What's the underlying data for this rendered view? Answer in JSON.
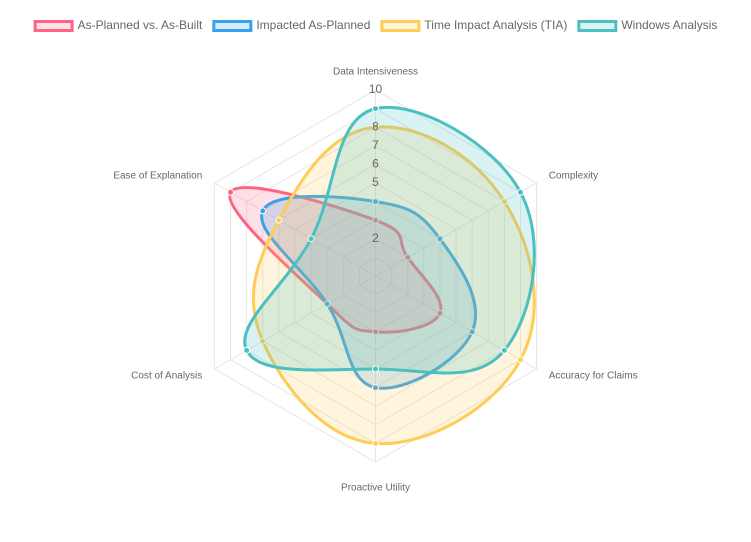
{
  "chart_data": {
    "type": "radar",
    "title": "",
    "axes": [
      "Data Intensiveness",
      "Complexity",
      "Accuracy for Claims",
      "Proactive Utility",
      "Cost of Analysis",
      "Ease of Explanation"
    ],
    "r_range": [
      0,
      10
    ],
    "ticks": [
      "10",
      "9",
      "8",
      "7",
      "6",
      "5",
      "4",
      "3",
      "2",
      "1"
    ],
    "visible_ticks": [
      "10",
      "8",
      "7",
      "6",
      "5",
      "2"
    ],
    "legend_position": "top",
    "series": [
      {
        "name": "As-Planned vs. As-Built",
        "values": [
          3,
          2,
          4,
          3,
          3,
          9
        ],
        "color": "#ff6384",
        "fill": "rgba(255,99,132,0.2)"
      },
      {
        "name": "Impacted As-Planned",
        "values": [
          4,
          4,
          6,
          6,
          3,
          7
        ],
        "color": "#36a2eb",
        "fill": "rgba(54,162,235,0.2)"
      },
      {
        "name": "Time Impact Analysis (TIA)",
        "values": [
          8,
          8,
          9,
          9,
          7,
          6
        ],
        "color": "#ffcd56",
        "fill": "rgba(255,205,86,0.2)"
      },
      {
        "name": "Windows Analysis",
        "values": [
          9,
          9,
          8,
          5,
          8,
          4
        ],
        "color": "#4bc0c0",
        "fill": "rgba(75,192,192,0.2)"
      }
    ]
  }
}
